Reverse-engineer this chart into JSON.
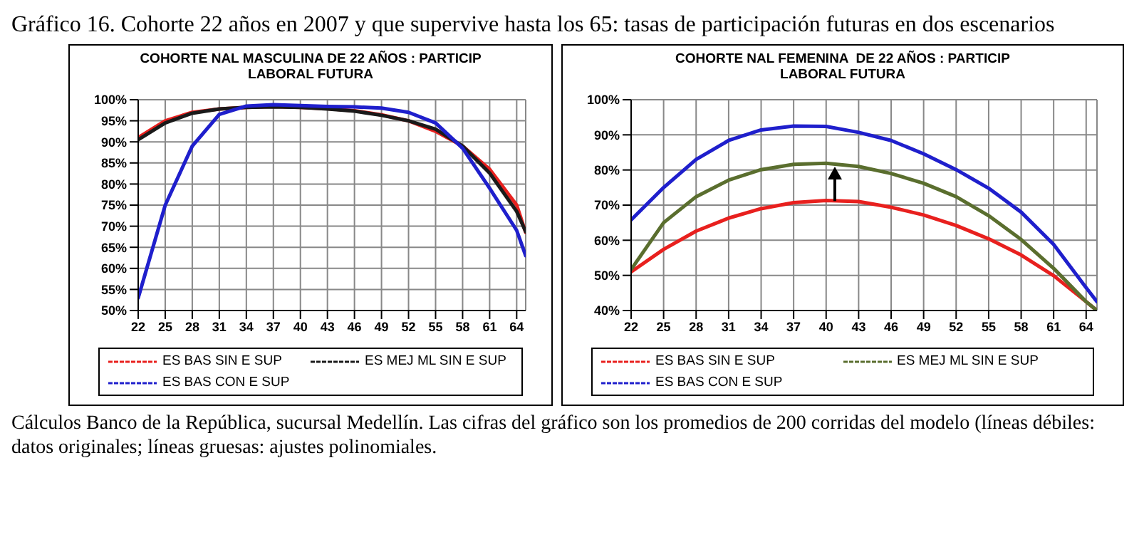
{
  "chart_data": [
    {
      "type": "line",
      "title": "Gráfico 16. Cohorte 22 años en 2007 y que supervive hasta los 65: tasas de participación futuras en dos escenarios",
      "subtitle": "COHORTE NAL MASCULINA DE 22 AÑOS : PARTICIP LABORAL FUTURA",
      "x": [
        22,
        25,
        28,
        31,
        34,
        37,
        40,
        43,
        46,
        49,
        52,
        55,
        58,
        61,
        64,
        65
      ],
      "series": [
        {
          "name": "ES BAS SIN E SUP",
          "color": "#e8201e",
          "values": [
            91,
            95,
            97,
            97.8,
            98.2,
            98.4,
            98.2,
            97.9,
            97.4,
            96.4,
            95,
            92.5,
            89,
            83.5,
            75,
            68.5
          ]
        },
        {
          "name": "ES MEJ ML SIN E SUP",
          "color": "#1a1a1a",
          "values": [
            90.5,
            94.5,
            96.8,
            97.8,
            98.2,
            98.3,
            98.2,
            97.8,
            97.3,
            96.3,
            95,
            93,
            89,
            82.6,
            73.5,
            68.7
          ]
        },
        {
          "name": "ES BAS CON E SUP",
          "color": "#1f1fcc",
          "values": [
            53,
            75,
            89,
            96.5,
            98.5,
            98.8,
            98.6,
            98.4,
            98.3,
            98,
            97,
            94.5,
            88.5,
            79,
            69,
            63
          ]
        }
      ],
      "xlim": [
        22,
        65
      ],
      "xticks": [
        22,
        25,
        28,
        31,
        34,
        37,
        40,
        43,
        46,
        49,
        52,
        55,
        58,
        61,
        64
      ],
      "ylim": [
        50,
        100
      ],
      "yticks": [
        {
          "value": 50,
          "label": "50%"
        },
        {
          "value": 55,
          "label": "55%"
        },
        {
          "value": 60,
          "label": "60%"
        },
        {
          "value": 65,
          "label": "65%"
        },
        {
          "value": 70,
          "label": "70%"
        },
        {
          "value": 75,
          "label": "75%"
        },
        {
          "value": 80,
          "label": "80%"
        },
        {
          "value": 85,
          "label": "85%"
        },
        {
          "value": 90,
          "label": "90%"
        },
        {
          "value": 95,
          "label": "95%"
        },
        {
          "value": 100,
          "label": "100%"
        }
      ],
      "grid": true,
      "legend": "bottom",
      "marker": "none",
      "line_style": "solid"
    },
    {
      "type": "line",
      "subtitle": "COHORTE NAL FEMENINA  DE 22 AÑOS : PARTICIP LABORAL FUTURA",
      "x": [
        22,
        25,
        28,
        31,
        34,
        37,
        40,
        43,
        46,
        49,
        52,
        55,
        58,
        61,
        64,
        65
      ],
      "series": [
        {
          "name": "ES BAS SIN E SUP",
          "color": "#e8201e",
          "values": [
            51,
            57.4,
            62.6,
            66.3,
            69,
            70.7,
            71.3,
            71,
            69.4,
            67.2,
            64.2,
            60.4,
            55.8,
            49.9,
            42.5,
            40
          ]
        },
        {
          "name": "ES MEJ ML SIN E SUP",
          "color": "#5a6e2e",
          "values": [
            51.7,
            65,
            72.4,
            77.1,
            80.1,
            81.6,
            81.9,
            81,
            79,
            76.2,
            72.4,
            67,
            60.2,
            52,
            42.5,
            40
          ]
        },
        {
          "name": "ES BAS CON E SUP",
          "color": "#1f1fcc",
          "values": [
            65.8,
            75,
            83,
            88.4,
            91.4,
            92.5,
            92.4,
            90.7,
            88.4,
            84.6,
            80.1,
            74.8,
            68,
            58.8,
            46.5,
            42.5
          ]
        }
      ],
      "xlim": [
        22,
        65
      ],
      "xticks": [
        22,
        25,
        28,
        31,
        34,
        37,
        40,
        43,
        46,
        49,
        52,
        55,
        58,
        61,
        64
      ],
      "ylim": [
        40,
        100
      ],
      "yticks": [
        {
          "value": 40,
          "label": "40%"
        },
        {
          "value": 50,
          "label": "50%"
        },
        {
          "value": 60,
          "label": "60%"
        },
        {
          "value": 70,
          "label": "70%"
        },
        {
          "value": 80,
          "label": "80%"
        },
        {
          "value": 90,
          "label": "90%"
        },
        {
          "value": 100,
          "label": "100%"
        }
      ],
      "grid": true,
      "legend": "bottom",
      "marker": "none",
      "line_style": "solid",
      "annotations": [
        "Cálculos Banco de la República, sucursal Medellín. Las cifras del gráfico son los promedios de 200 corridas del modelo (líneas débiles: datos originales; líneas gruesas: ajustes polinomiales."
      ]
    }
  ]
}
